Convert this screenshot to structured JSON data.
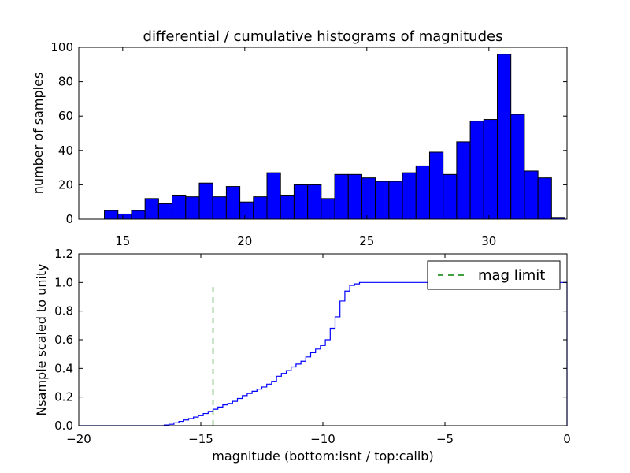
{
  "title": "differential / cumulative histograms of magnitudes",
  "chart_data": [
    {
      "id": "top",
      "type": "bar",
      "xlabel": "",
      "ylabel": "number of samples",
      "xlim": [
        13.2,
        33.2
      ],
      "ylim": [
        0,
        100
      ],
      "xticks": [
        15,
        20,
        25,
        30
      ],
      "yticks": [
        0,
        20,
        40,
        60,
        80,
        100
      ],
      "bar_color": "#0000ff",
      "bin_start": 14.25,
      "bin_width": 0.555,
      "values": [
        5,
        3,
        5,
        12,
        9,
        14,
        13,
        21,
        13,
        19,
        10,
        13,
        27,
        14,
        20,
        20,
        12,
        26,
        26,
        24,
        22,
        22,
        27,
        31,
        39,
        26,
        45,
        57,
        58,
        96,
        61,
        28,
        24,
        1
      ]
    },
    {
      "id": "bottom",
      "type": "line",
      "style": "step",
      "xlabel": "magnitude (bottom:isnt / top:calib)",
      "ylabel": "Nsample scaled to unity",
      "xlim": [
        -20,
        0
      ],
      "ylim": [
        0,
        1.2
      ],
      "xticks": [
        -20,
        -15,
        -10,
        -5,
        0
      ],
      "xtick_labels": [
        "−20",
        "−15",
        "−10",
        "−5",
        "0"
      ],
      "yticks": [
        0.0,
        0.2,
        0.4,
        0.6,
        0.8,
        1.0,
        1.2
      ],
      "ytick_labels": [
        "0.0",
        "0.2",
        "0.4",
        "0.6",
        "0.8",
        "1.0",
        "1.2"
      ],
      "line_color": "#0000ff",
      "x": [
        -20,
        -16.5,
        -16.3,
        -16.1,
        -15.9,
        -15.7,
        -15.5,
        -15.3,
        -15.1,
        -14.9,
        -14.7,
        -14.5,
        -14.3,
        -14.1,
        -13.9,
        -13.7,
        -13.5,
        -13.3,
        -13.1,
        -12.9,
        -12.7,
        -12.5,
        -12.3,
        -12.1,
        -11.9,
        -11.7,
        -11.5,
        -11.3,
        -11.1,
        -10.9,
        -10.7,
        -10.5,
        -10.3,
        -10.1,
        -9.9,
        -9.7,
        -9.5,
        -9.3,
        -9.1,
        -8.9,
        -8.7,
        -8.5,
        -8.3,
        -0.05,
        0
      ],
      "y": [
        0.0,
        0.005,
        0.01,
        0.02,
        0.03,
        0.04,
        0.05,
        0.06,
        0.07,
        0.085,
        0.1,
        0.115,
        0.13,
        0.145,
        0.155,
        0.17,
        0.19,
        0.21,
        0.225,
        0.24,
        0.255,
        0.27,
        0.29,
        0.31,
        0.345,
        0.365,
        0.385,
        0.41,
        0.43,
        0.45,
        0.48,
        0.51,
        0.535,
        0.56,
        0.6,
        0.68,
        0.76,
        0.87,
        0.94,
        0.98,
        0.99,
        1.0,
        1.0,
        1.0,
        0.0
      ],
      "mag_limit": {
        "x": -14.5,
        "y0": 0,
        "y1": 0.97,
        "color": "#008000",
        "label": "mag limit"
      },
      "legend_loc": "upper right"
    }
  ]
}
